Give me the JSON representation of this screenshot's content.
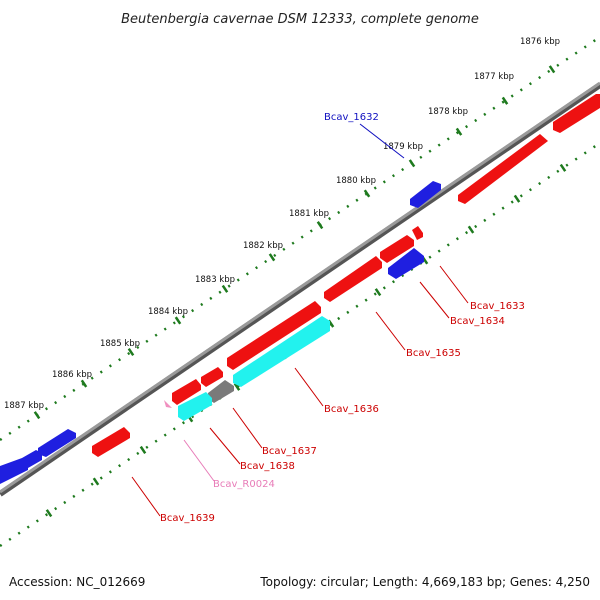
{
  "title": "Beutenbergia cavernae DSM 12333, complete genome",
  "footer": {
    "accession": "Accession: NC_012669",
    "summary": "Topology: circular; Length: 4,669,183 bp; Genes: 4,250"
  },
  "colors": {
    "backbone": "#8c8c8c",
    "ticks": "#1e7a1e",
    "forward_gene": "#2222dd",
    "reverse_gene": "#ee1111",
    "rna_gene": "#22f2ee",
    "pseudo_gene": "#7a7a7a",
    "misc_feature": "#f08fbf"
  },
  "chart_data": {
    "type": "genome-map",
    "kbp_labels": [
      "1876 kbp",
      "1877 kbp",
      "1878 kbp",
      "1879 kbp",
      "1880 kbp",
      "1881 kbp",
      "1882 kbp",
      "1883 kbp",
      "1884 kbp",
      "1885 kbp",
      "1886 kbp",
      "1887 kbp"
    ],
    "gene_labels": [
      {
        "name": "Bcav_1632",
        "color": "#1010c0"
      },
      {
        "name": "Bcav_1633",
        "color": "#cc0000"
      },
      {
        "name": "Bcav_1634",
        "color": "#cc0000"
      },
      {
        "name": "Bcav_1635",
        "color": "#cc0000"
      },
      {
        "name": "Bcav_1636",
        "color": "#cc0000"
      },
      {
        "name": "Bcav_1637",
        "color": "#cc0000"
      },
      {
        "name": "Bcav_1638",
        "color": "#cc0000"
      },
      {
        "name": "Bcav_R0024",
        "color": "#e87cb8"
      },
      {
        "name": "Bcav_1639",
        "color": "#cc0000"
      }
    ]
  }
}
